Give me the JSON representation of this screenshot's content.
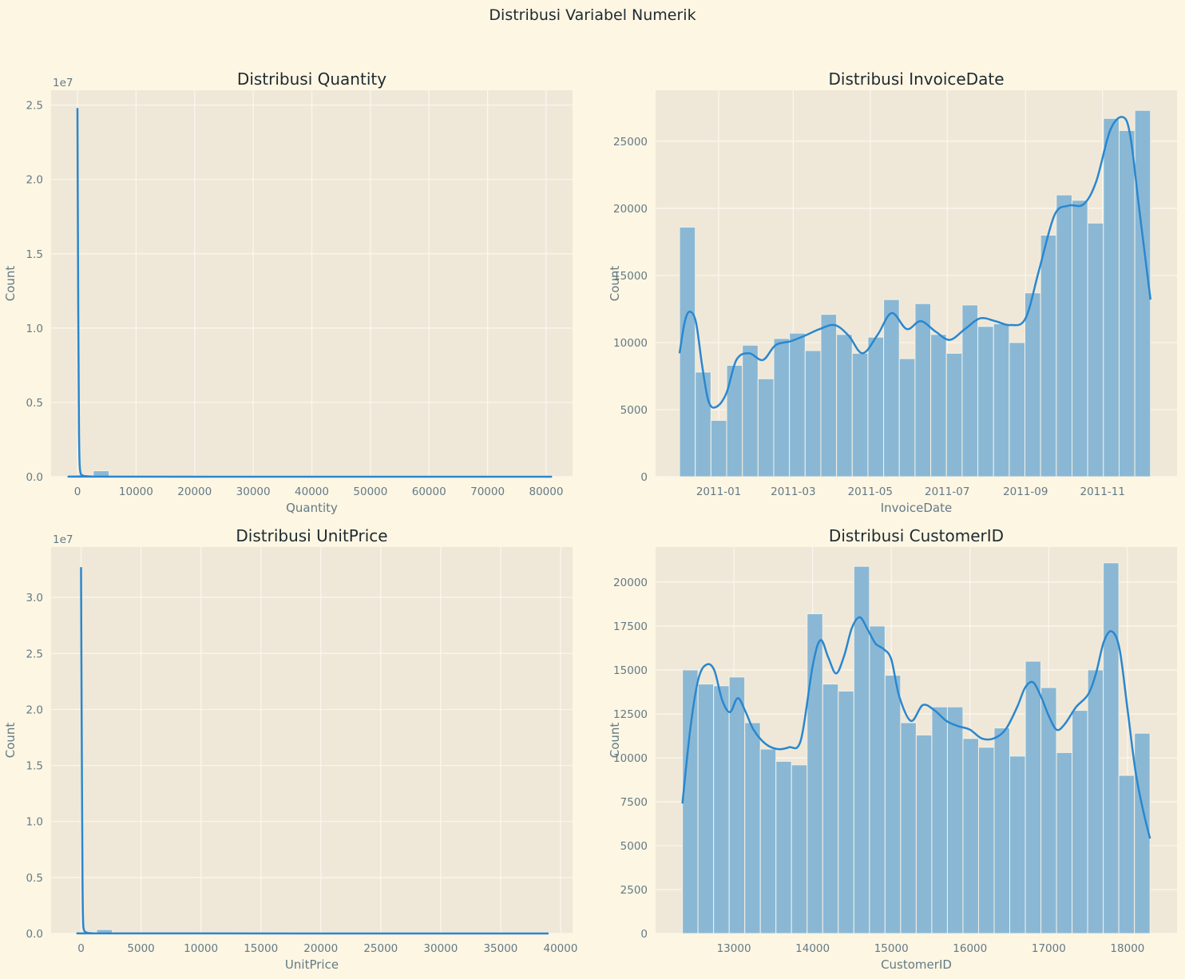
{
  "suptitle": "Distribusi Variabel Numerik",
  "colors": {
    "background": "#fdf6e3",
    "axes_bg": "#efe8d8",
    "grid": "#fbf7ef",
    "bar": "#8ab8d4",
    "bar_edge": "#f4f0e6",
    "kde": "#2a87cf",
    "text": "#637a86",
    "title": "#1f2a30"
  },
  "chart_data": [
    {
      "type": "bar",
      "title": "Distribusi Quantity",
      "xlabel": "Quantity",
      "ylabel": "Count",
      "y_offset_label": "1e7",
      "xlim": [
        -4500,
        84500
      ],
      "ylim": [
        0,
        26000000
      ],
      "x_ticks": [
        0,
        10000,
        20000,
        30000,
        40000,
        50000,
        60000,
        70000,
        80000
      ],
      "x_tick_labels": [
        "0",
        "10000",
        "20000",
        "30000",
        "40000",
        "50000",
        "60000",
        "70000",
        "80000"
      ],
      "y_ticks": [
        0,
        5000000,
        10000000,
        15000000,
        20000000,
        25000000
      ],
      "y_tick_labels": [
        "0.0",
        "0.5",
        "1.0",
        "1.5",
        "2.0",
        "2.5"
      ],
      "bin_start": 0,
      "bin_width": 2700,
      "values": [
        120000,
        400000,
        60000,
        60000,
        60000,
        60000,
        60000,
        60000,
        60000,
        60000,
        60000,
        60000,
        60000,
        60000,
        60000,
        60000,
        60000,
        60000,
        60000,
        60000,
        60000,
        60000,
        60000,
        60000,
        60000,
        60000,
        60000,
        60000,
        60000,
        60000
      ],
      "kde": {
        "x": [
          0,
          45,
          140,
          240,
          340,
          500,
          900,
          2000,
          5000,
          81000
        ],
        "y": [
          24800000,
          20000000,
          11000000,
          4000000,
          1200000,
          300000,
          80000,
          20000,
          5000,
          0
        ]
      },
      "grid": true
    },
    {
      "type": "bar",
      "title": "Distribusi InvoiceDate",
      "xlabel": "InvoiceDate",
      "ylabel": "Count",
      "x_is_date": true,
      "xlim": [
        "2010-11-12",
        "2011-12-30"
      ],
      "ylim": [
        0,
        28800
      ],
      "x_ticks": [
        "2011-01-01",
        "2011-03-01",
        "2011-05-01",
        "2011-07-01",
        "2011-09-01",
        "2011-11-01"
      ],
      "x_tick_labels": [
        "2011-01",
        "2011-03",
        "2011-05",
        "2011-07",
        "2011-09",
        "2011-11"
      ],
      "y_ticks": [
        0,
        5000,
        10000,
        15000,
        20000,
        25000
      ],
      "y_tick_labels": [
        "0",
        "5000",
        "10000",
        "15000",
        "20000",
        "25000"
      ],
      "bin_start": "2010-12-01",
      "bin_end": "2011-12-09",
      "values": [
        18600,
        7800,
        4200,
        8300,
        9800,
        7300,
        10300,
        10700,
        9400,
        12100,
        10600,
        9200,
        10400,
        13200,
        8800,
        12900,
        10600,
        9200,
        12800,
        11200,
        11400,
        10000,
        13700,
        18000,
        21000,
        20600,
        18900,
        26700,
        25800,
        27300
      ],
      "kde": {
        "x": [
          "2010-12-01",
          "2010-12-05",
          "2010-12-09",
          "2010-12-14",
          "2010-12-19",
          "2010-12-24",
          "2010-12-30",
          "2011-01-07",
          "2011-01-15",
          "2011-01-25",
          "2011-02-05",
          "2011-02-15",
          "2011-02-27",
          "2011-03-10",
          "2011-03-22",
          "2011-04-03",
          "2011-04-14",
          "2011-04-25",
          "2011-05-07",
          "2011-05-18",
          "2011-05-30",
          "2011-06-10",
          "2011-06-22",
          "2011-07-03",
          "2011-07-15",
          "2011-07-27",
          "2011-08-08",
          "2011-08-20",
          "2011-09-01",
          "2011-09-12",
          "2011-09-24",
          "2011-10-05",
          "2011-10-17",
          "2011-10-27",
          "2011-11-07",
          "2011-11-17",
          "2011-11-23",
          "2011-11-30",
          "2011-12-09"
        ],
        "y": [
          9200,
          11500,
          12300,
          11500,
          8200,
          5600,
          5200,
          6200,
          8700,
          9200,
          8700,
          9800,
          10100,
          10500,
          11000,
          11300,
          10500,
          9200,
          10600,
          12200,
          11000,
          11600,
          10800,
          10200,
          11000,
          11800,
          11600,
          11300,
          11800,
          15500,
          19500,
          20200,
          20300,
          22000,
          25800,
          26800,
          25400,
          20000,
          13200
        ]
      },
      "grid": true
    },
    {
      "type": "bar",
      "title": "Distribusi UnitPrice",
      "xlabel": "UnitPrice",
      "ylabel": "Count",
      "y_offset_label": "1e7",
      "xlim": [
        -2500,
        41000
      ],
      "ylim": [
        0,
        34500000
      ],
      "x_ticks": [
        0,
        5000,
        10000,
        15000,
        20000,
        25000,
        30000,
        35000,
        40000
      ],
      "x_tick_labels": [
        "0",
        "5000",
        "10000",
        "15000",
        "20000",
        "25000",
        "30000",
        "35000",
        "40000"
      ],
      "y_ticks": [
        0,
        5000000,
        10000000,
        15000000,
        20000000,
        25000000,
        30000000
      ],
      "y_tick_labels": [
        "0.0",
        "0.5",
        "1.0",
        "1.5",
        "2.0",
        "2.5",
        "3.0"
      ],
      "bin_start": 0,
      "bin_width": 1300,
      "values": [
        120000,
        350000,
        60000,
        60000,
        60000,
        60000,
        60000,
        60000,
        60000,
        60000,
        60000,
        60000,
        60000,
        60000,
        60000,
        60000,
        60000,
        60000,
        60000,
        60000,
        60000,
        60000,
        60000,
        60000,
        60000,
        60000,
        60000,
        60000,
        60000,
        60000
      ],
      "kde": {
        "x": [
          0,
          20,
          70,
          115,
          165,
          250,
          500,
          1000,
          3000,
          39000
        ],
        "y": [
          32700000,
          27000000,
          14000000,
          5000000,
          1300000,
          300000,
          80000,
          20000,
          5000,
          0
        ]
      },
      "grid": true
    },
    {
      "type": "bar",
      "title": "Distribusi CustomerID",
      "xlabel": "CustomerID",
      "ylabel": "Count",
      "xlim": [
        12005,
        18630
      ],
      "ylim": [
        0,
        22000
      ],
      "x_ticks": [
        13000,
        14000,
        15000,
        16000,
        17000,
        18000
      ],
      "x_tick_labels": [
        "13000",
        "14000",
        "15000",
        "16000",
        "17000",
        "18000"
      ],
      "y_ticks": [
        0,
        2500,
        5000,
        7500,
        10000,
        12500,
        15000,
        17500,
        20000
      ],
      "y_tick_labels": [
        "0",
        "2500",
        "5000",
        "7500",
        "10000",
        "12500",
        "15000",
        "17500",
        "20000"
      ],
      "bin_start": 12346,
      "bin_end": 18287,
      "values": [
        15000,
        14200,
        14100,
        14600,
        12000,
        10500,
        9800,
        9600,
        18200,
        14200,
        13800,
        20900,
        17500,
        14700,
        12000,
        11300,
        12900,
        12900,
        11100,
        10600,
        11700,
        10100,
        15500,
        14000,
        10300,
        12700,
        15000,
        21100,
        9000,
        11400
      ],
      "kde": {
        "x": [
          12346,
          12450,
          12550,
          12650,
          12750,
          12850,
          12950,
          13050,
          13150,
          13250,
          13400,
          13550,
          13700,
          13850,
          14000,
          14100,
          14200,
          14300,
          14400,
          14500,
          14600,
          14700,
          14800,
          14900,
          15000,
          15100,
          15250,
          15400,
          15550,
          15700,
          15850,
          16000,
          16150,
          16300,
          16450,
          16600,
          16700,
          16800,
          16900,
          17000,
          17100,
          17200,
          17350,
          17500,
          17600,
          17700,
          17800,
          17900,
          18000,
          18100,
          18200,
          18287
        ],
        "y": [
          7400,
          11800,
          14500,
          15300,
          15000,
          13300,
          12600,
          13400,
          12600,
          11600,
          10800,
          10500,
          10600,
          11000,
          15200,
          16700,
          15700,
          14800,
          15800,
          17400,
          18000,
          17300,
          16500,
          16200,
          15600,
          13500,
          12100,
          13000,
          12700,
          12100,
          11800,
          11600,
          11100,
          11100,
          11600,
          12900,
          14000,
          14300,
          13500,
          12400,
          11600,
          11900,
          12900,
          13600,
          14800,
          16600,
          17200,
          16200,
          12800,
          9300,
          7000,
          5400
        ]
      },
      "grid": true
    }
  ]
}
